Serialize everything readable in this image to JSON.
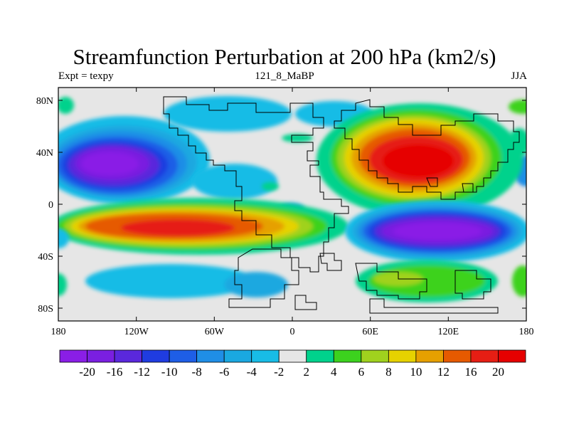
{
  "title": "Streamfunction Perturbation at 200 hPa (km2/s)",
  "subtitle_left": "Expt = texpy",
  "subtitle_center": "121_8_MaBP",
  "subtitle_right": "JJA",
  "lon_ticks": [
    "180",
    "120W",
    "60W",
    "0",
    "60E",
    "120E",
    "180"
  ],
  "lat_ticks": [
    "80N",
    "40N",
    "0",
    "40S",
    "80S"
  ],
  "colorbar": {
    "labels": [
      "-20",
      "-16",
      "-12",
      "-10",
      "-8",
      "-6",
      "-4",
      "-2",
      "2",
      "4",
      "6",
      "8",
      "10",
      "12",
      "16",
      "20"
    ],
    "colors": [
      "#8a1ee6",
      "#7a1fe0",
      "#5a28dc",
      "#1f3ce0",
      "#1e5ee6",
      "#1f8ee6",
      "#1aa8e0",
      "#18bce6",
      "#e6e6e6",
      "#00d28c",
      "#3cd21e",
      "#a0d21e",
      "#e6d200",
      "#e6a000",
      "#e65a00",
      "#e61e14",
      "#e60000"
    ]
  },
  "map_data": {
    "type": "filled_contour_map",
    "projection": "cylindrical_equidistant",
    "lon_range": [
      -180,
      180
    ],
    "lat_range": [
      -90,
      90
    ],
    "features": [
      {
        "name": "cyclonic-center-north-pacific",
        "lon": -135,
        "lat": 35,
        "value": -22
      },
      {
        "name": "anticyclonic-center-asia",
        "lon": 100,
        "lat": 30,
        "value": 18
      },
      {
        "name": "anticyclonic-band-south-pacific",
        "lon": -110,
        "lat": -18,
        "value": 16
      },
      {
        "name": "cyclonic-center-indian-ocean",
        "lon": 105,
        "lat": -20,
        "value": -20
      }
    ]
  }
}
